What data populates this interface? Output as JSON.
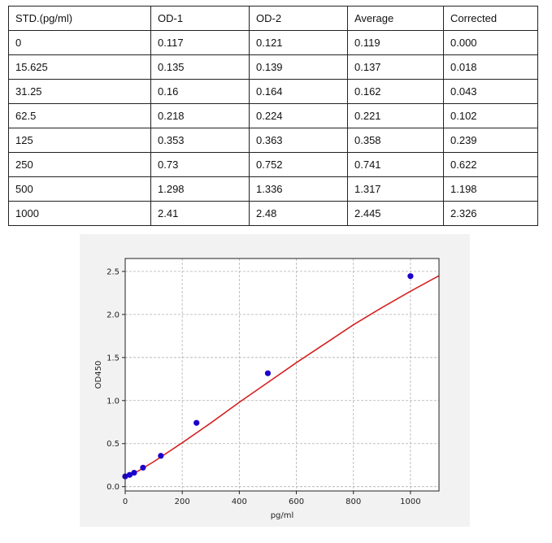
{
  "table": {
    "headers": [
      "STD.(pg/ml)",
      "OD-1",
      "OD-2",
      "Average",
      "Corrected"
    ],
    "rows": [
      [
        "0",
        "0.117",
        "0.121",
        "0.119",
        "0.000"
      ],
      [
        "15.625",
        "0.135",
        "0.139",
        "0.137",
        "0.018"
      ],
      [
        "31.25",
        "0.16",
        "0.164",
        "0.162",
        "0.043"
      ],
      [
        "62.5",
        "0.218",
        "0.224",
        "0.221",
        "0.102"
      ],
      [
        "125",
        "0.353",
        "0.363",
        "0.358",
        "0.239"
      ],
      [
        "250",
        "0.73",
        "0.752",
        "0.741",
        "0.622"
      ],
      [
        "500",
        "1.298",
        "1.336",
        "1.317",
        "1.198"
      ],
      [
        "1000",
        "2.41",
        "2.48",
        "2.445",
        "2.326"
      ]
    ]
  },
  "chart_data": {
    "type": "scatter",
    "xlabel": "pg/ml",
    "ylabel": "OD450",
    "xlim": [
      0,
      1100
    ],
    "ylim": [
      -0.05,
      2.65
    ],
    "xticks": [
      0,
      200,
      400,
      600,
      800,
      1000
    ],
    "yticks": [
      0.0,
      0.5,
      1.0,
      1.5,
      2.0,
      2.5
    ],
    "xtick_labels": [
      "0",
      "200",
      "400",
      "600",
      "800",
      "1000"
    ],
    "ytick_labels": [
      "0.0",
      "0.5",
      "1.0",
      "1.5",
      "2.0",
      "2.5"
    ],
    "grid": true,
    "points": {
      "x": [
        0,
        15.625,
        31.25,
        62.5,
        125,
        250,
        500,
        1000
      ],
      "y": [
        0.119,
        0.137,
        0.162,
        0.221,
        0.358,
        0.741,
        1.317,
        2.445
      ]
    },
    "fit_curve": {
      "x": [
        0,
        50,
        100,
        200,
        300,
        400,
        500,
        600,
        700,
        800,
        900,
        1000,
        1100
      ],
      "y": [
        0.1,
        0.19,
        0.29,
        0.51,
        0.74,
        0.98,
        1.21,
        1.44,
        1.66,
        1.88,
        2.08,
        2.27,
        2.45
      ]
    },
    "colors": {
      "points": "#1a00cc",
      "curve": "#d62020",
      "grid": "#b0b0b0",
      "axes": "#222222"
    }
  }
}
